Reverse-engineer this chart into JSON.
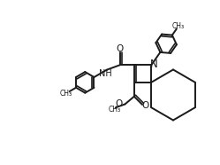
{
  "bg": "#ffffff",
  "lc": "#1a1a1a",
  "lw": 1.4,
  "fs": 7.0,
  "dbo": 0.022,
  "xlim": [
    0,
    2.49
  ],
  "ylim": [
    0,
    1.86
  ],
  "figsize": [
    2.49,
    1.86
  ],
  "dpi": 100
}
